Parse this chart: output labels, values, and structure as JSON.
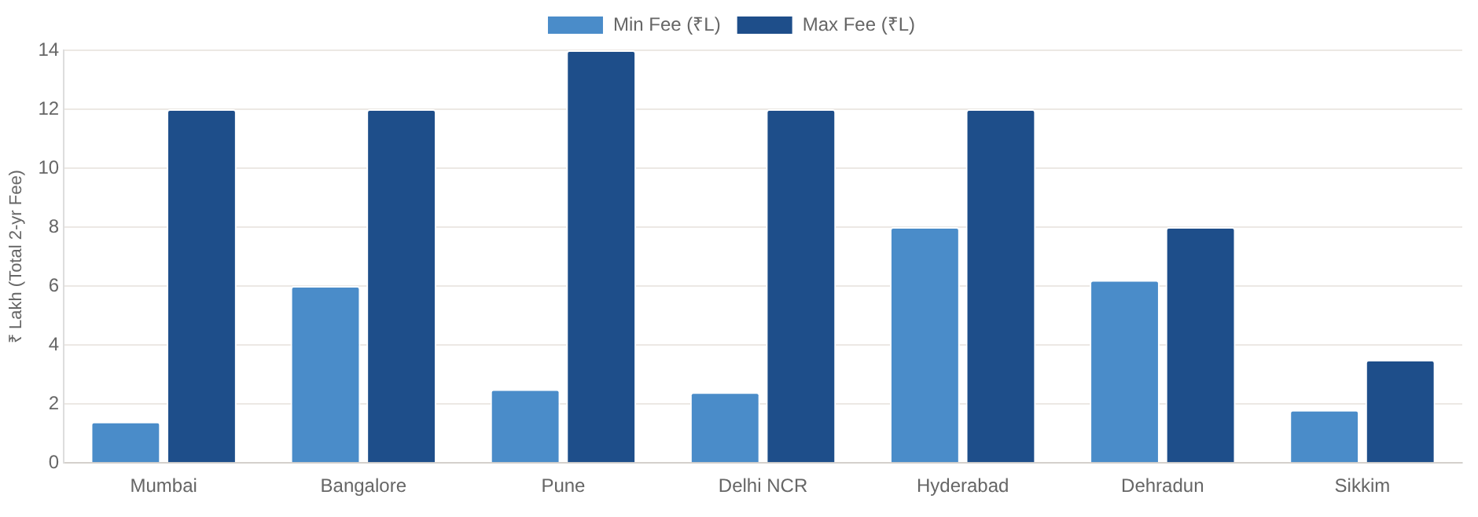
{
  "chart_data": {
    "type": "bar",
    "ylabel": "₹ Lakh (Total 2-yr Fee)",
    "categories": [
      "Mumbai",
      "Bangalore",
      "Pune",
      "Delhi NCR",
      "Hyderabad",
      "Dehradun",
      "Sikkim"
    ],
    "series": [
      {
        "name": "Min Fee (₹L)",
        "color": "#4a8cc9",
        "values": [
          1.4,
          6,
          2.5,
          2.4,
          8,
          6.2,
          1.8
        ]
      },
      {
        "name": "Max Fee (₹L)",
        "color": "#1e4e8a",
        "values": [
          12,
          12,
          14,
          12,
          12,
          8,
          3.5
        ]
      }
    ],
    "ylim": [
      0,
      14
    ],
    "yticks": [
      0,
      2,
      4,
      6,
      8,
      10,
      12,
      14
    ],
    "grid": "y",
    "legend": "top"
  }
}
